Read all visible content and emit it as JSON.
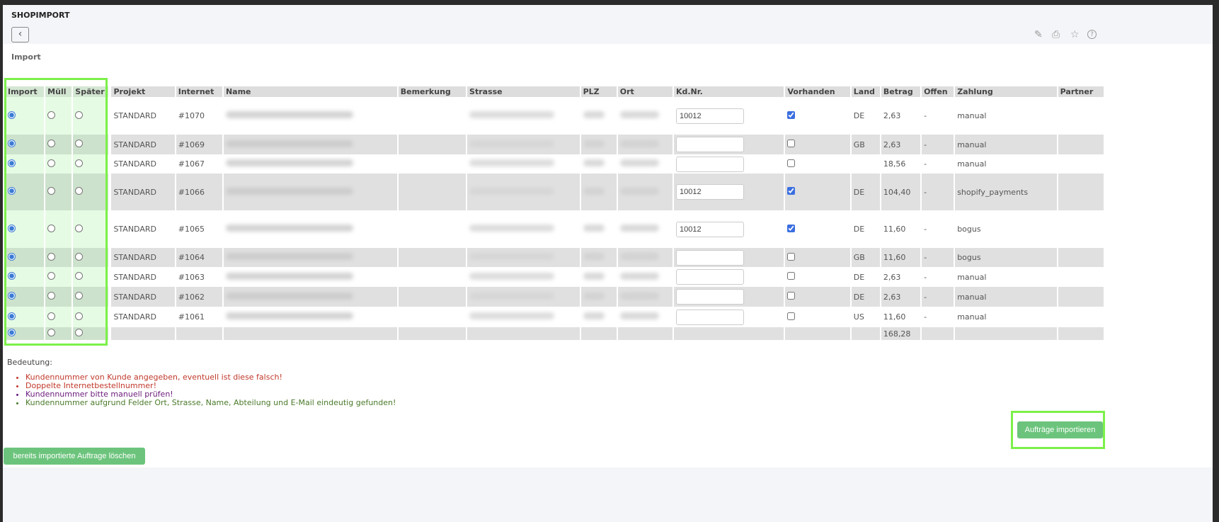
{
  "header": {
    "title": "SHOPIMPORT",
    "back_icon": "chevron-left-icon",
    "tools": [
      "pencil-icon",
      "printer-icon",
      "star-icon",
      "help-icon"
    ]
  },
  "section": "Import",
  "columns": [
    "Import",
    "Müll",
    "Später",
    "Projekt",
    "Internet",
    "Name",
    "Bemerkung",
    "Strasse",
    "PLZ",
    "Ort",
    "Kd.Nr.",
    "Vorhanden",
    "Land",
    "Betrag",
    "Offen",
    "Zahlung",
    "Partner"
  ],
  "rows": [
    {
      "projekt": "STANDARD",
      "internet": "#1070",
      "kdnr": "10012",
      "vorhanden": true,
      "land": "DE",
      "betrag": "2,63",
      "offen": "-",
      "zahlung": "manual"
    },
    {
      "projekt": "STANDARD",
      "internet": "#1069",
      "kdnr": "",
      "vorhanden": false,
      "land": "GB",
      "betrag": "2,63",
      "offen": "-",
      "zahlung": "manual"
    },
    {
      "projekt": "STANDARD",
      "internet": "#1067",
      "kdnr": "",
      "vorhanden": false,
      "land": "",
      "betrag": "18,56",
      "offen": "-",
      "zahlung": "manual"
    },
    {
      "projekt": "STANDARD",
      "internet": "#1066",
      "kdnr": "10012",
      "vorhanden": true,
      "land": "DE",
      "betrag": "104,40",
      "offen": "-",
      "zahlung": "shopify_payments"
    },
    {
      "projekt": "STANDARD",
      "internet": "#1065",
      "kdnr": "10012",
      "vorhanden": true,
      "land": "DE",
      "betrag": "11,60",
      "offen": "-",
      "zahlung": "bogus"
    },
    {
      "projekt": "STANDARD",
      "internet": "#1064",
      "kdnr": "",
      "vorhanden": false,
      "land": "GB",
      "betrag": "11,60",
      "offen": "-",
      "zahlung": "bogus"
    },
    {
      "projekt": "STANDARD",
      "internet": "#1063",
      "kdnr": "",
      "vorhanden": false,
      "land": "DE",
      "betrag": "2,63",
      "offen": "-",
      "zahlung": "manual"
    },
    {
      "projekt": "STANDARD",
      "internet": "#1062",
      "kdnr": "",
      "vorhanden": false,
      "land": "DE",
      "betrag": "2,63",
      "offen": "-",
      "zahlung": "manual"
    },
    {
      "projekt": "STANDARD",
      "internet": "#1061",
      "kdnr": "",
      "vorhanden": false,
      "land": "US",
      "betrag": "11,60",
      "offen": "-",
      "zahlung": "manual"
    }
  ],
  "total": "168,28",
  "legend": {
    "title": "Bedeutung:",
    "items": [
      {
        "text": "Kundennummer von Kunde angegeben, eventuell ist diese falsch!",
        "color": "#c0392b"
      },
      {
        "text": "Doppelte Internetbestellnummer!",
        "color": "#c0392b"
      },
      {
        "text": "Kundennummer bitte manuell prüfen!",
        "color": "#6a1b7a"
      },
      {
        "text": "Kundennummer aufgrund Felder Ort, Strasse, Name, Abteilung und E-Mail eindeutig gefunden!",
        "color": "#4a7a2a"
      }
    ]
  },
  "buttons": {
    "import": "Aufträge importieren",
    "delete": "bereits importierte Auftrage löschen"
  }
}
